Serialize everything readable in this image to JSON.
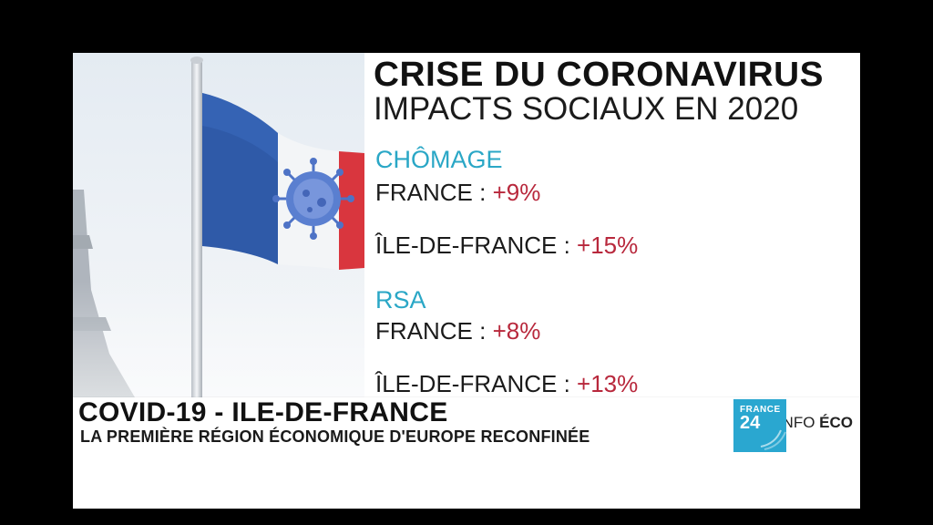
{
  "graphic": {
    "title": "CRISE DU CORONAVIRUS",
    "subtitle": "IMPACTS SOCIAUX EN 2020",
    "sections": [
      {
        "label": "CHÔMAGE",
        "rows": [
          {
            "region": "FRANCE : ",
            "value": "+9%"
          },
          {
            "region": "ÎLE-DE-FRANCE : ",
            "value": "+15%"
          }
        ]
      },
      {
        "label": "RSA",
        "rows": [
          {
            "region": "FRANCE : ",
            "value": "+8%"
          },
          {
            "region": "ÎLE-DE-FRANCE : ",
            "value": "+13%"
          }
        ]
      }
    ]
  },
  "lower_third": {
    "headline": "COVID-19 - ILE-DE-FRANCE",
    "subheadline": "LA PREMIÈRE RÉGION ÉCONOMIQUE D'EUROPE RECONFINÉE",
    "program_prefix": "L'INFO ",
    "program_bold": "ÉCO"
  },
  "logo": {
    "line1": "FRANCE",
    "line2": "24"
  },
  "colors": {
    "section_label": "#2aa7c6",
    "stat_value": "#b8283c",
    "logo_bg": "#2aa7d0",
    "flag_blue": "#2f5aa8",
    "flag_red": "#d9363e"
  }
}
